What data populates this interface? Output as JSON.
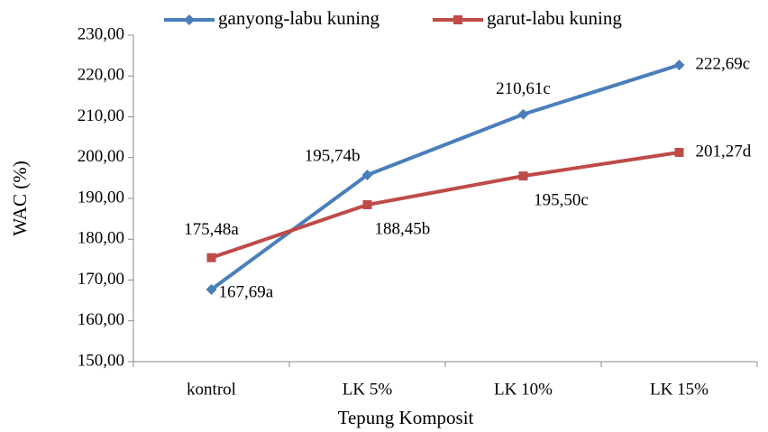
{
  "chart_data": {
    "type": "line",
    "categories": [
      "kontrol",
      "LK 5%",
      "LK 10%",
      "LK 15%"
    ],
    "series": [
      {
        "name": "ganyong-labu kuning",
        "color": "#4a7ebb",
        "values": [
          167.69,
          195.74,
          210.61,
          222.69
        ],
        "value_labels": [
          "167,69a",
          "195,74b",
          "210,61c",
          "222,69c"
        ]
      },
      {
        "name": "garut-labu kuning",
        "color": "#be4b48",
        "values": [
          175.48,
          188.45,
          195.5,
          201.27
        ],
        "value_labels": [
          "175,48a",
          "188,45b",
          "195,50c",
          "201,27d"
        ]
      }
    ],
    "ylabel": "WAC (%)",
    "xlabel": "Tepung Komposit",
    "ylim": [
      150,
      230
    ],
    "yticks": [
      {
        "value": 150,
        "label": "150,00"
      },
      {
        "value": 160,
        "label": "160,00"
      },
      {
        "value": 170,
        "label": "170,00"
      },
      {
        "value": 180,
        "label": "180,00"
      },
      {
        "value": 190,
        "label": "190,00"
      },
      {
        "value": 200,
        "label": "200,00"
      },
      {
        "value": 210,
        "label": "210,00"
      },
      {
        "value": 220,
        "label": "220,00"
      },
      {
        "value": 230,
        "label": "230,00"
      }
    ],
    "grid": false,
    "legend": "top"
  }
}
